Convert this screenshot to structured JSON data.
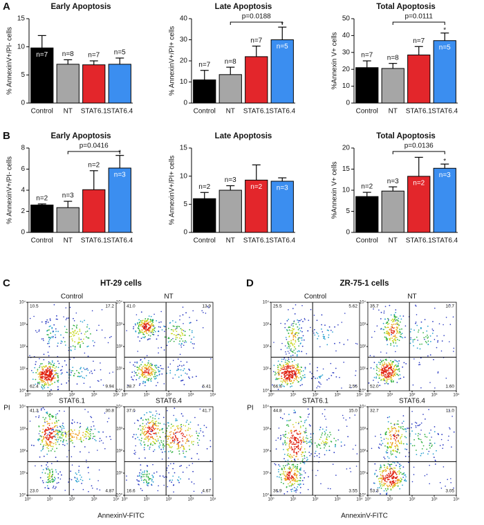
{
  "chart_data": [
    {
      "type": "bar",
      "panel_label": "A",
      "title": "Early Apoptosis",
      "ylabel": "% AnnexinV+/PI- cells",
      "categories": [
        "Control",
        "NT",
        "STAT6.1",
        "STAT6.4"
      ],
      "values": [
        9.8,
        6.9,
        6.8,
        6.9
      ],
      "errors": [
        2.2,
        0.8,
        0.7,
        1.1
      ],
      "n_labels": [
        "n=7",
        "n=8",
        "n=7",
        "n=5"
      ],
      "colors": [
        "#000000",
        "#a6a6a6",
        "#e3262b",
        "#3b8ef0"
      ],
      "ylim": [
        0,
        15
      ],
      "yticks": [
        0,
        5,
        10,
        15
      ]
    },
    {
      "type": "bar",
      "title": "Late Apoptosis",
      "ylabel": "% AnnexinV+/PI+ cells",
      "categories": [
        "Control",
        "NT",
        "STAT6.1",
        "STAT6.4"
      ],
      "values": [
        11,
        13.5,
        22,
        30
      ],
      "errors": [
        4.5,
        3.5,
        5,
        6
      ],
      "n_labels": [
        "n=7",
        "n=8",
        "n=7",
        "n=5"
      ],
      "colors": [
        "#000000",
        "#a6a6a6",
        "#e3262b",
        "#3b8ef0"
      ],
      "ylim": [
        0,
        40
      ],
      "yticks": [
        0,
        10,
        20,
        30,
        40
      ],
      "significance": {
        "categories": [
          "NT",
          "STAT6.4"
        ],
        "label": "p=0.0188",
        "marker": "*"
      }
    },
    {
      "type": "bar",
      "title": "Total Apoptosis",
      "ylabel": "%Annexin V+ cells",
      "categories": [
        "Control",
        "NT",
        "STAT6.1",
        "STAT6.4"
      ],
      "values": [
        21,
        20.5,
        28.5,
        37
      ],
      "errors": [
        4,
        3,
        5,
        4.5
      ],
      "n_labels": [
        "n=7",
        "n=8",
        "n=7",
        "n=5"
      ],
      "colors": [
        "#000000",
        "#a6a6a6",
        "#e3262b",
        "#3b8ef0"
      ],
      "ylim": [
        0,
        50
      ],
      "yticks": [
        0,
        10,
        20,
        30,
        40,
        50
      ],
      "significance": {
        "categories": [
          "NT",
          "STAT6.4"
        ],
        "label": "p=0.0111",
        "marker": "*"
      }
    },
    {
      "type": "bar",
      "panel_label": "B",
      "title": "Early Apoptosis",
      "ylabel": "% AnnexinV+/PI- cells",
      "categories": [
        "Control",
        "NT",
        "STAT6.1",
        "STAT6.4"
      ],
      "values": [
        2.6,
        2.35,
        4.05,
        6.1
      ],
      "errors": [
        0.1,
        0.6,
        1.8,
        1.2
      ],
      "n_labels": [
        "n=2",
        "n=3",
        "n=2",
        "n=3"
      ],
      "colors": [
        "#000000",
        "#a6a6a6",
        "#e3262b",
        "#3b8ef0"
      ],
      "ylim": [
        0,
        8
      ],
      "yticks": [
        0,
        2,
        4,
        6,
        8
      ],
      "significance": {
        "categories": [
          "NT",
          "STAT6.4"
        ],
        "label": "p=0.0416",
        "marker": "*"
      }
    },
    {
      "type": "bar",
      "title": "Late Apoptosis",
      "ylabel": "% AnnexinV+/PI+ cells",
      "categories": [
        "Control",
        "NT",
        "STAT6.1",
        "STAT6.4"
      ],
      "values": [
        6,
        7.5,
        9.3,
        9.1
      ],
      "errors": [
        1.1,
        0.8,
        2.7,
        0.6
      ],
      "n_labels": [
        "n=2",
        "n=3",
        "n=2",
        "n=3"
      ],
      "colors": [
        "#000000",
        "#a6a6a6",
        "#e3262b",
        "#3b8ef0"
      ],
      "ylim": [
        0,
        15
      ],
      "yticks": [
        0,
        5,
        10,
        15
      ]
    },
    {
      "type": "bar",
      "title": "Total Apoptosis",
      "ylabel": "%Annexin V+ cells",
      "categories": [
        "Control",
        "NT",
        "STAT6.1",
        "STAT6.4"
      ],
      "values": [
        8.5,
        9.8,
        13.3,
        15.2
      ],
      "errors": [
        1,
        1,
        4.5,
        1
      ],
      "n_labels": [
        "n=2",
        "n=3",
        "n=2",
        "n=3"
      ],
      "colors": [
        "#000000",
        "#a6a6a6",
        "#e3262b",
        "#3b8ef0"
      ],
      "ylim": [
        0,
        20
      ],
      "yticks": [
        0,
        5,
        10,
        15,
        20
      ],
      "significance": {
        "categories": [
          "NT",
          "STAT6.4"
        ],
        "label": "p=0.0136",
        "marker": "*"
      }
    },
    {
      "type": "flow",
      "panel_label": "C",
      "title": "HT-29 cells",
      "xlabel": "AnnexinV-FITC",
      "ylabel": "PI",
      "log": true,
      "xlim": [
        1,
        10000
      ],
      "ylim": [
        1,
        10000
      ],
      "xticks": [
        {
          "value": 1,
          "label": "10⁰"
        },
        {
          "value": 10,
          "label": "10¹"
        },
        {
          "value": 100,
          "label": "10²"
        },
        {
          "value": 1000,
          "label": "10³"
        },
        {
          "value": 10000,
          "label": "10⁴"
        }
      ],
      "yticks": [
        {
          "value": 1,
          "label": "10⁰"
        },
        {
          "value": 10,
          "label": "10¹"
        },
        {
          "value": 100,
          "label": "10²"
        },
        {
          "value": 1000,
          "label": "10³"
        },
        {
          "value": 10000,
          "label": "10⁴"
        }
      ],
      "plots": [
        {
          "name": "Control",
          "quadrants": [
            "10.5",
            "17.2",
            "62.4",
            "9.94"
          ]
        },
        {
          "name": "NT",
          "quadrants": [
            "41.0",
            "13.9",
            "38.7",
            "6.41"
          ]
        },
        {
          "name": "STAT6.1",
          "quadrants": [
            "41.3",
            "30.8",
            "23.0",
            "4.87"
          ]
        },
        {
          "name": "STAT6.4",
          "quadrants": [
            "37.0",
            "41.7",
            "16.6",
            "4.67"
          ]
        }
      ]
    },
    {
      "type": "flow",
      "panel_label": "D",
      "title": "ZR-75-1 cells",
      "xlabel": "AnnexinV-FITC",
      "ylabel": "PI",
      "log": true,
      "xlim": [
        1,
        10000
      ],
      "ylim": [
        1,
        10000
      ],
      "xticks": [
        {
          "value": 1,
          "label": "10⁰"
        },
        {
          "value": 10,
          "label": "10¹"
        },
        {
          "value": 100,
          "label": "10²"
        },
        {
          "value": 1000,
          "label": "10³"
        },
        {
          "value": 10000,
          "label": "10⁴"
        }
      ],
      "yticks": [
        {
          "value": 1,
          "label": "10⁰"
        },
        {
          "value": 10,
          "label": "10¹"
        },
        {
          "value": 100,
          "label": "10²"
        },
        {
          "value": 1000,
          "label": "10³"
        },
        {
          "value": 10000,
          "label": "10⁴"
        }
      ],
      "plots": [
        {
          "name": "Control",
          "quadrants": [
            "25.5",
            "5.62",
            "66.4",
            "2.56"
          ]
        },
        {
          "name": "NT",
          "quadrants": [
            "35.7",
            "10.7",
            "52.0",
            "1.60"
          ]
        },
        {
          "name": "STAT6.1",
          "quadrants": [
            "44.8",
            "15.0",
            "36.9",
            "3.55"
          ]
        },
        {
          "name": "STAT6.4",
          "quadrants": [
            "32.7",
            "11.0",
            "53.3",
            "3.05"
          ]
        }
      ]
    }
  ]
}
